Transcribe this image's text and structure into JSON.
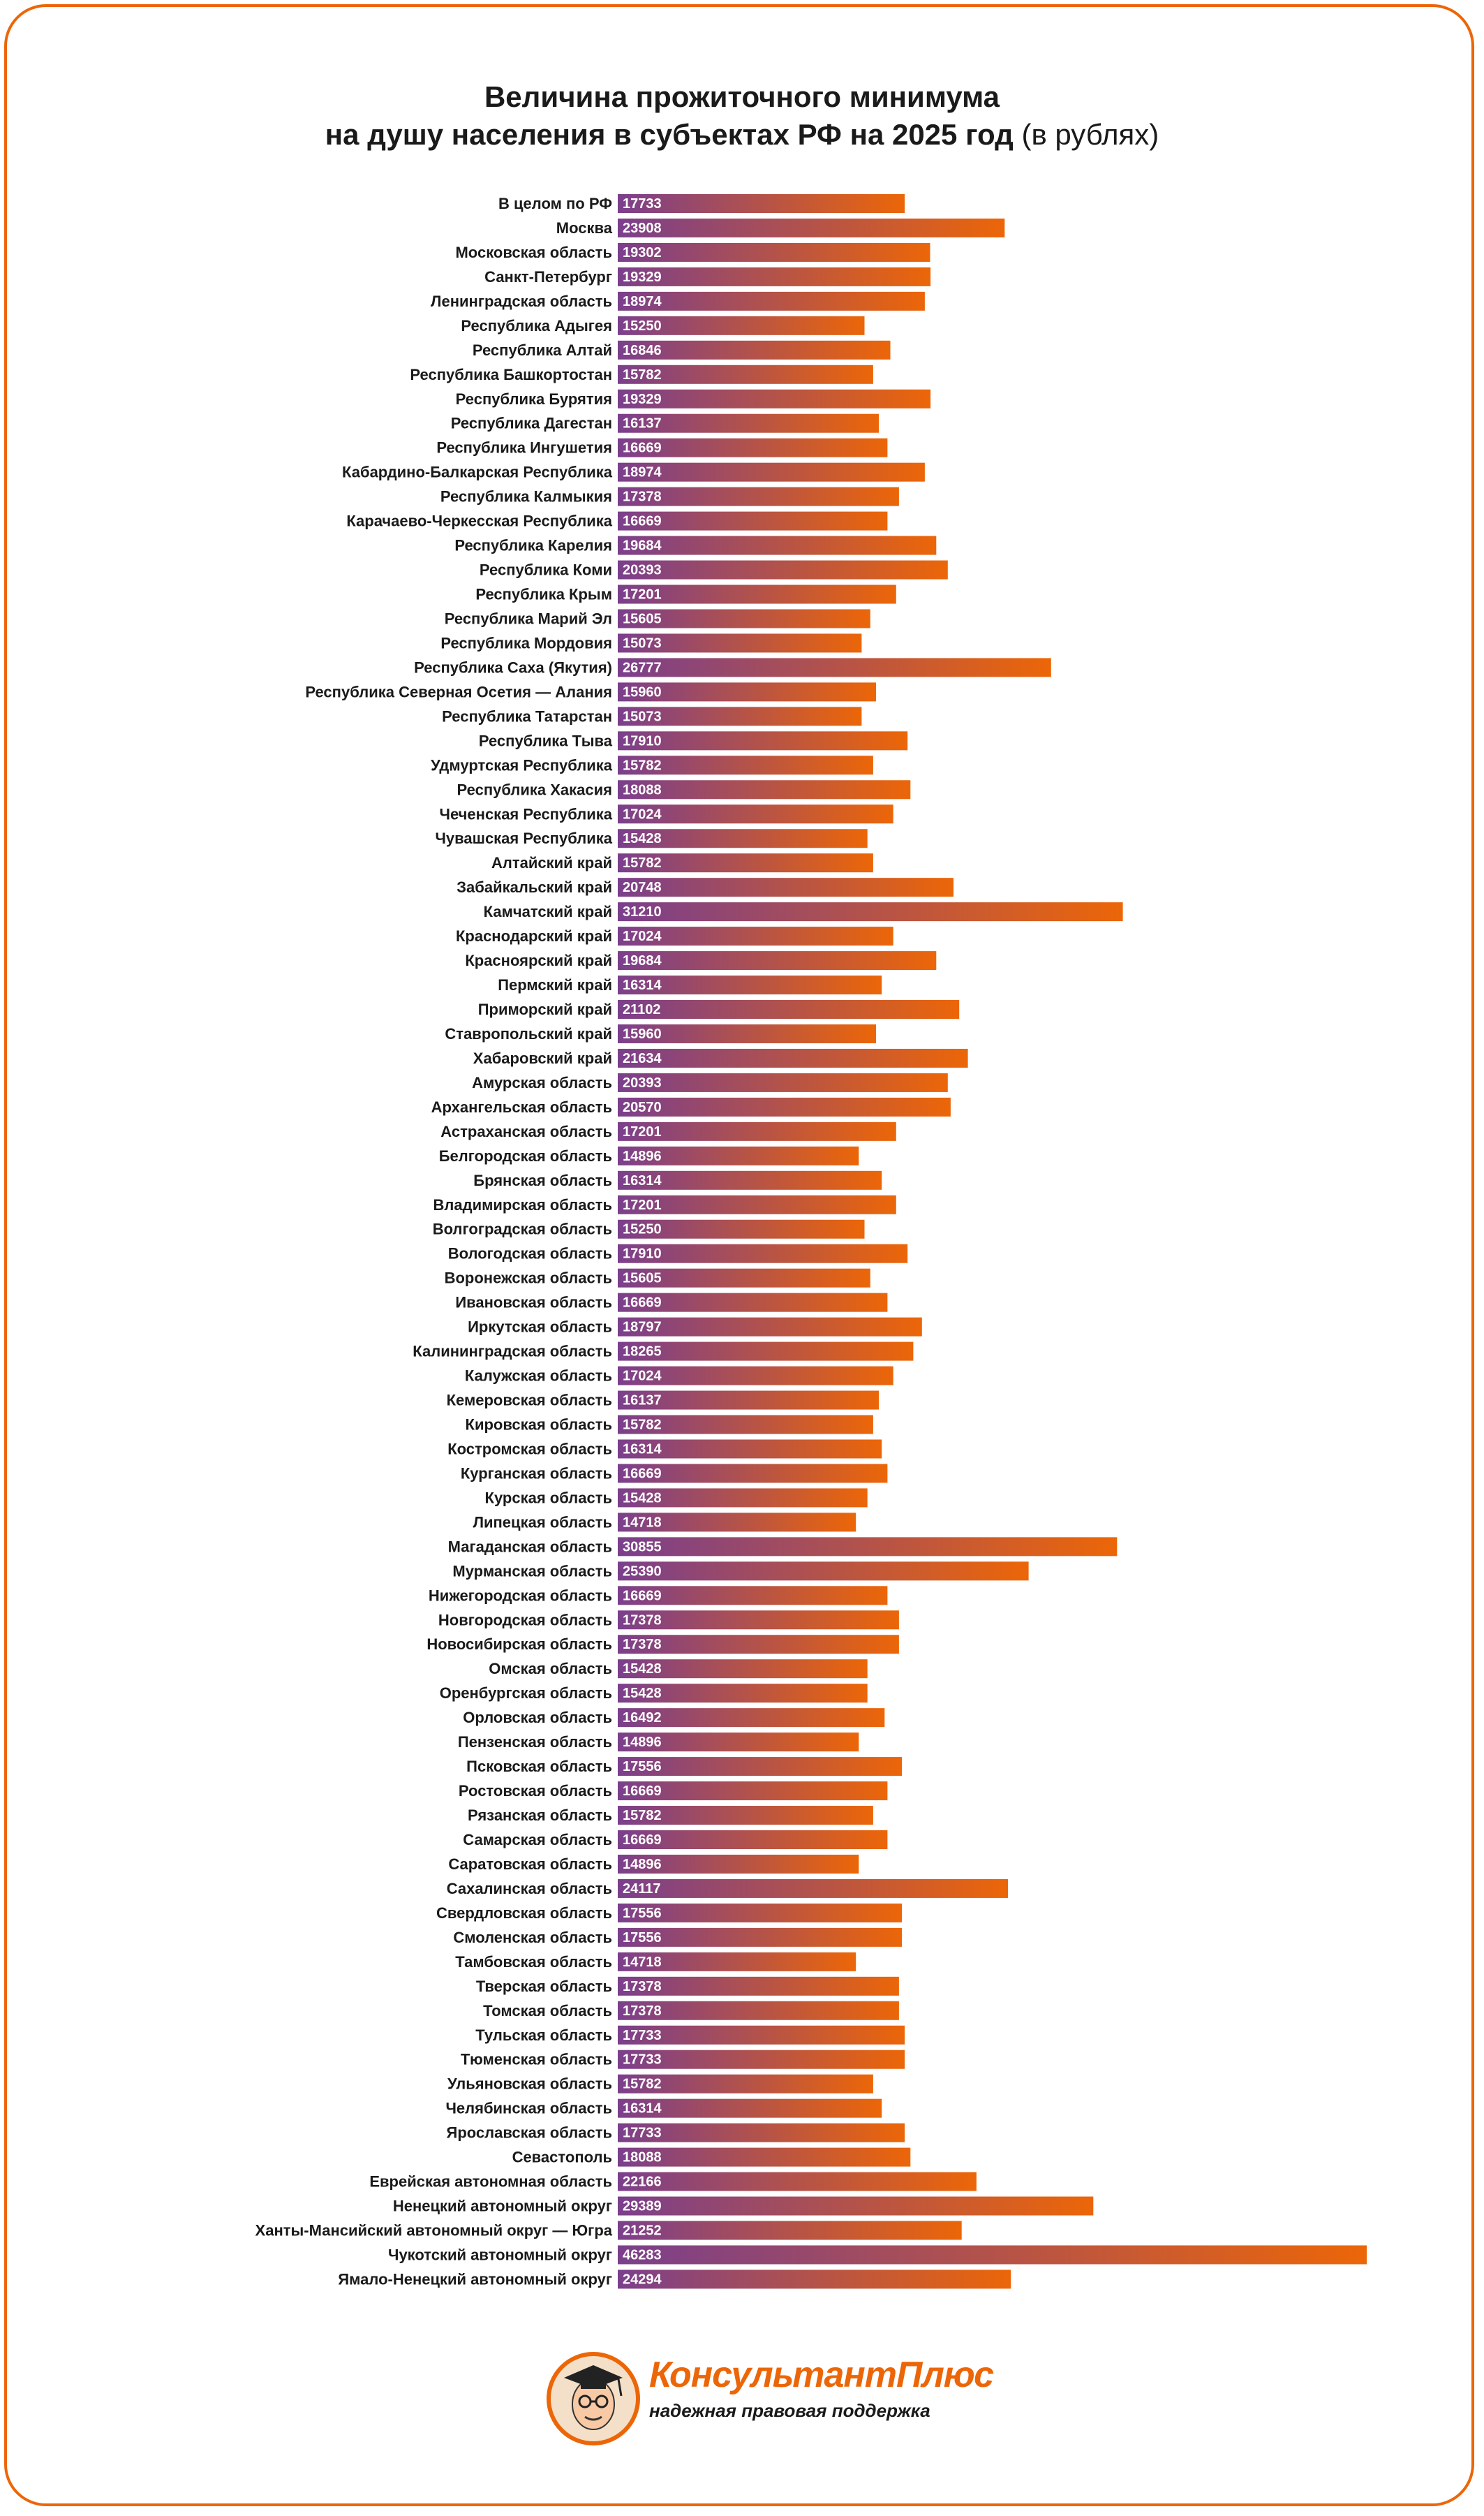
{
  "title": {
    "line1": "Величина прожиточного минимума",
    "line2": "на душу населения в субъектах РФ на 2025 год",
    "unit": "(в рублях)"
  },
  "brand": {
    "name": "КонсультантПлюс",
    "tagline": "надежная правовая поддержка"
  },
  "colors": {
    "bar_start": "#7b3f8c",
    "bar_end": "#ec6608",
    "frame": "#ec6608"
  },
  "chart_data": {
    "type": "bar",
    "orientation": "horizontal",
    "grid": false,
    "data_labels": true,
    "categories": [
      "В целом по РФ",
      "Москва",
      "Московская область",
      "Санкт-Петербург",
      "Ленинградская область",
      "Республика Адыгея",
      "Республика Алтай",
      "Республика Башкортостан",
      "Республика Бурятия",
      "Республика Дагестан",
      "Республика Ингушетия",
      "Кабардино-Балкарская Республика",
      "Республика Калмыкия",
      "Карачаево-Черкесская Республика",
      "Республика Карелия",
      "Республика Коми",
      "Республика Крым",
      "Республика Марий Эл",
      "Республика Мордовия",
      "Республика Саха (Якутия)",
      "Республика Северная Осетия — Алания",
      "Республика Татарстан",
      "Республика Тыва",
      "Удмуртская Республика",
      "Республика Хакасия",
      "Чеченская Республика",
      "Чувашская Республика",
      "Алтайский край",
      "Забайкальский край",
      "Камчатский край",
      "Краснодарский край",
      "Красноярский край",
      "Пермский край",
      "Приморский край",
      "Ставропольский край",
      "Хабаровский край",
      "Амурская область",
      "Архангельская область",
      "Астраханская область",
      "Белгородская область",
      "Брянская область",
      "Владимирская область",
      "Волгоградская область",
      "Вологодская область",
      "Воронежская область",
      "Ивановская область",
      "Иркутская область",
      "Калининградская область",
      "Калужская область",
      "Кемеровская область",
      "Кировская область",
      "Костромская область",
      "Курганская область",
      "Курская область",
      "Липецкая область",
      "Магаданская область",
      "Мурманская область",
      "Нижегородская область",
      "Новгородская область",
      "Новосибирская область",
      "Омская область",
      "Оренбургская область",
      "Орловская область",
      "Пензенская область",
      "Псковская область",
      "Ростовская область",
      "Рязанская область",
      "Самарская область",
      "Саратовская область",
      "Сахалинская область",
      "Свердловская область",
      "Смоленская область",
      "Тамбовская область",
      "Тверская область",
      "Томская область",
      "Тульская область",
      "Тюменская область",
      "Ульяновская область",
      "Челябинская область",
      "Ярославская область",
      "Севастополь",
      "Еврейская автономная область",
      "Ненецкий автономный округ",
      "Ханты-Мансийский автономный округ — Югра",
      "Чукотский автономный округ",
      "Ямало-Ненецкий автономный округ"
    ],
    "values": [
      17733,
      23908,
      19302,
      19329,
      18974,
      15250,
      16846,
      15782,
      19329,
      16137,
      16669,
      18974,
      17378,
      16669,
      19684,
      20393,
      17201,
      15605,
      15073,
      26777,
      15960,
      15073,
      17910,
      15782,
      18088,
      17024,
      15428,
      15782,
      20748,
      31210,
      17024,
      19684,
      16314,
      21102,
      15960,
      21634,
      20393,
      20570,
      17201,
      14896,
      16314,
      17201,
      15250,
      17910,
      15605,
      16669,
      18797,
      18265,
      17024,
      16137,
      15782,
      16314,
      16669,
      15428,
      14718,
      30855,
      25390,
      16669,
      17378,
      17378,
      15428,
      15428,
      16492,
      14896,
      17556,
      16669,
      15782,
      16669,
      14896,
      24117,
      17556,
      17556,
      14718,
      17378,
      17378,
      17733,
      17733,
      15782,
      16314,
      17733,
      18088,
      22166,
      29389,
      21252,
      46283,
      24294
    ],
    "xlim": [
      0,
      46283
    ]
  }
}
